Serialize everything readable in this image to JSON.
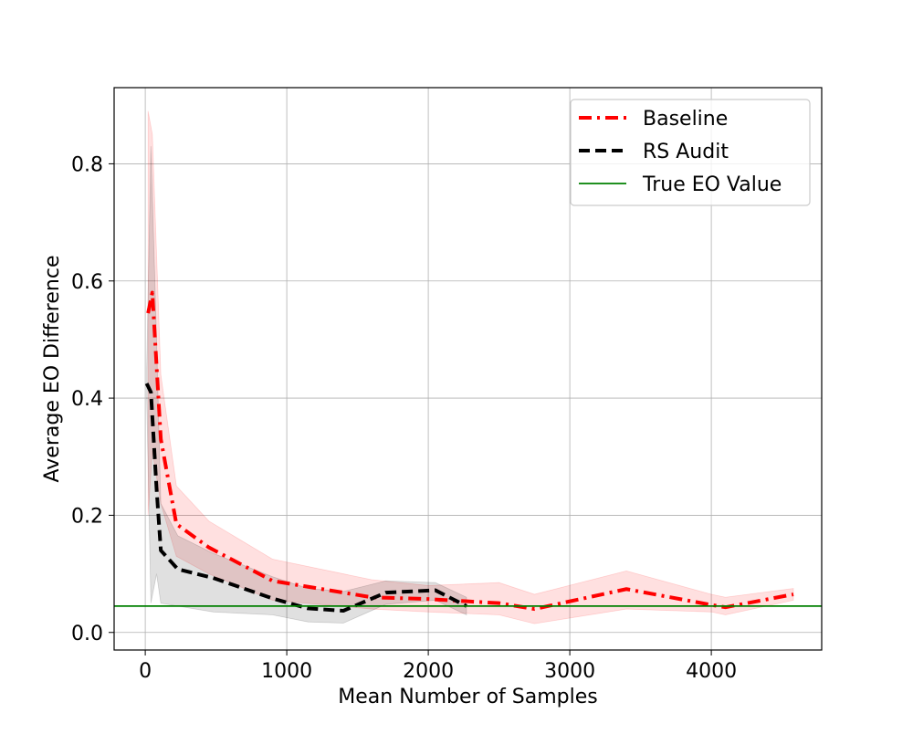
{
  "chart_data": {
    "type": "line",
    "title": "",
    "xlabel": "Mean Number of Samples",
    "ylabel": "Average EO Difference",
    "xlim": [
      -220,
      4780
    ],
    "ylim": [
      -0.03,
      0.93
    ],
    "xticks": [
      0,
      1000,
      2000,
      3000,
      4000
    ],
    "yticks": [
      0.0,
      0.2,
      0.4,
      0.6,
      0.8
    ],
    "xtick_labels": [
      "0",
      "1000",
      "2000",
      "3000",
      "4000"
    ],
    "ytick_labels": [
      "0.0",
      "0.2",
      "0.4",
      "0.6",
      "0.8"
    ],
    "grid": true,
    "legend_position": "top-right",
    "series": [
      {
        "name": "Baseline",
        "color": "#ff0000",
        "line_style": "dash-dot",
        "x": [
          20,
          50,
          110,
          220,
          450,
          900,
          1600,
          2000,
          2500,
          2750,
          3400,
          4000,
          4100,
          4580
        ],
        "y": [
          0.545,
          0.58,
          0.33,
          0.185,
          0.145,
          0.088,
          0.06,
          0.057,
          0.05,
          0.04,
          0.074,
          0.047,
          0.043,
          0.065
        ],
        "band_upper": [
          0.89,
          0.85,
          0.44,
          0.25,
          0.19,
          0.125,
          0.09,
          0.08,
          0.085,
          0.065,
          0.105,
          0.065,
          0.06,
          0.075
        ],
        "band_lower": [
          0.2,
          0.31,
          0.22,
          0.13,
          0.1,
          0.055,
          0.04,
          0.035,
          0.03,
          0.015,
          0.04,
          0.035,
          0.03,
          0.055
        ]
      },
      {
        "name": "RS Audit",
        "color": "#000000",
        "line_style": "dashed",
        "x": [
          10,
          40,
          80,
          110,
          230,
          480,
          900,
          1150,
          1400,
          1700,
          2050,
          2270
        ],
        "y": [
          0.425,
          0.41,
          0.245,
          0.14,
          0.108,
          0.093,
          0.058,
          0.041,
          0.037,
          0.068,
          0.072,
          0.045
        ],
        "band_upper": [
          0.45,
          0.83,
          0.5,
          0.22,
          0.165,
          0.135,
          0.095,
          0.075,
          0.07,
          0.088,
          0.085,
          0.06
        ],
        "band_lower": [
          0.4,
          0.05,
          0.1,
          0.05,
          0.045,
          0.035,
          0.03,
          0.018,
          0.016,
          0.048,
          0.055,
          0.03
        ]
      },
      {
        "name": "True EO Value",
        "color": "#008000",
        "line_style": "solid",
        "y_constant": 0.045
      }
    ]
  }
}
